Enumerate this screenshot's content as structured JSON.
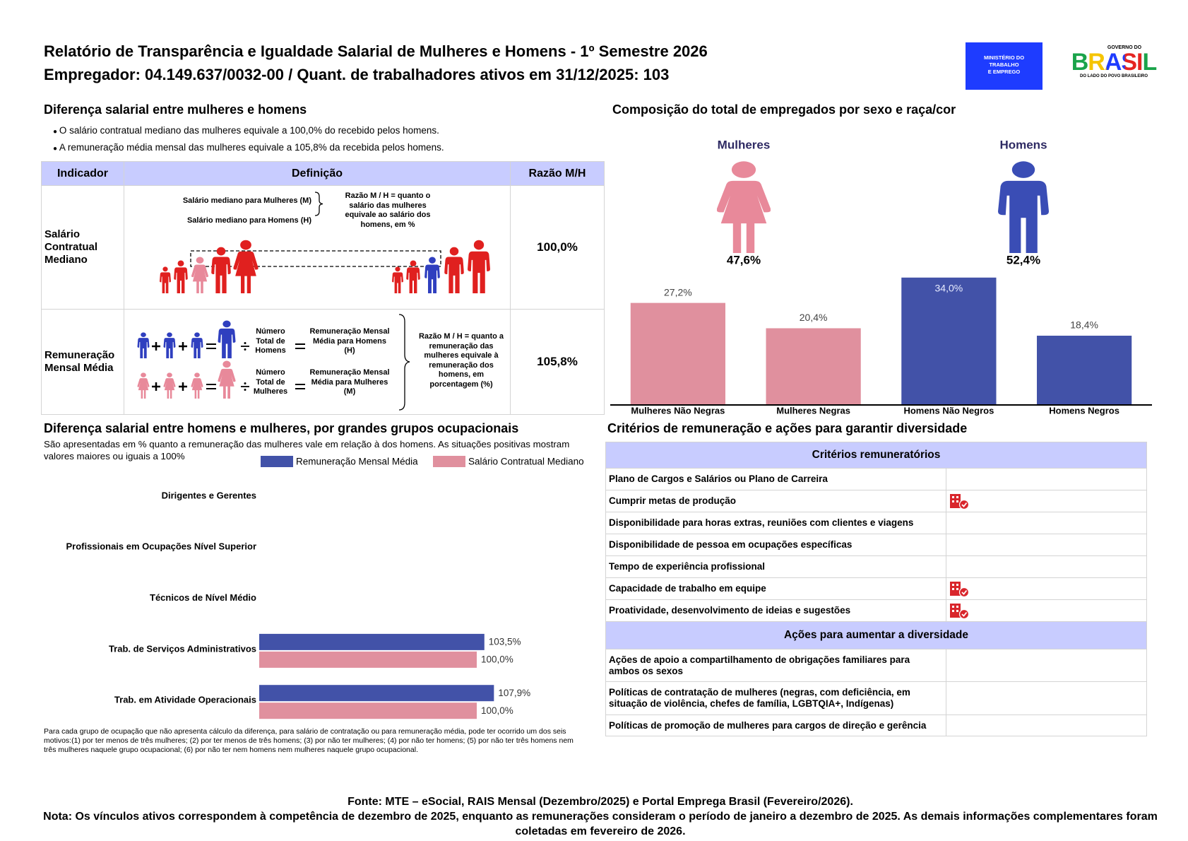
{
  "header": {
    "title": "Relatório de Transparência e Igualdade Salarial de Mulheres e Homens - 1º Semestre 2026",
    "subtitle": "Empregador: 04.149.637/0032-00 / Quant. de trabalhadores ativos em 31/12/2025: 103",
    "ministry_logo": [
      "MINISTÉRIO DO",
      "TRABALHO",
      "E EMPREGO"
    ],
    "government_logo": {
      "top": "GOVERNO DO",
      "name": "BRASIL",
      "slogan": "DO LADO DO POVO BRASILEIRO"
    }
  },
  "salary_gap": {
    "title": "Diferença salarial entre mulheres e homens",
    "bullets": [
      "O salário contratual mediano das mulheres equivale a 100,0% do recebido pelos homens.",
      "A remuneração média mensal das mulheres equivale a 105,8% da recebida pelos homens."
    ],
    "table": {
      "headers": [
        "Indicador",
        "Definição",
        "Razão M/H"
      ],
      "rows": [
        {
          "indicator": "Salário Contratual Mediano",
          "definition": {
            "women_median": "Salário mediano para Mulheres (M)",
            "men_median": "Salário mediano para Homens (H)",
            "ratio_note": "Razão M / H = quanto o salário das mulheres equivale ao salário dos homens, em %"
          },
          "ratio": "100,0%"
        },
        {
          "indicator": "Remuneração Mensal Média",
          "definition": {
            "men_count": "Número Total de Homens",
            "men_mean": "Remuneração Mensal Média para Homens (H)",
            "women_count": "Número Total de Mulheres",
            "women_mean": "Remuneração Mensal Média para Mulheres (M)",
            "ratio_note": "Razão M / H = quanto a remuneração das mulheres equivale à remuneração dos homens, em porcentagem (%)"
          },
          "ratio": "105,8%"
        }
      ]
    }
  },
  "chart_data": [
    {
      "type": "bar",
      "title": "Composição do total de empregados por sexo e raça/cor",
      "groups": [
        {
          "name": "Mulheres",
          "share": "47,6%",
          "color": "#e8899a"
        },
        {
          "name": "Homens",
          "share": "52,4%",
          "color": "#3a4db5"
        }
      ],
      "categories": [
        "Mulheres Não Negras",
        "Mulheres Negras",
        "Homens Não Negros",
        "Homens Negros"
      ],
      "values": [
        27.2,
        20.4,
        34.0,
        18.4
      ],
      "value_labels": [
        "27,2%",
        "20,4%",
        "34,0%",
        "18,4%"
      ],
      "colors": [
        "#e0909e",
        "#e0909e",
        "#4252a8",
        "#4252a8"
      ],
      "ylim": [
        0,
        35
      ]
    },
    {
      "type": "hbar",
      "title": "Diferença salarial entre homens e mulheres, por grandes grupos ocupacionais",
      "subtitle": "São apresentadas em % quanto a remuneração das mulheres vale em relação à dos homens. As situações positivas mostram valores maiores ou iguais a 100%",
      "categories": [
        "Dirigentes e Gerentes",
        "Profissionais em Ocupações Nível Superior",
        "Técnicos de Nível Médio",
        "Trab. de Serviços Administrativos",
        "Trab. em Atividade Operacionais"
      ],
      "series": [
        {
          "name": "Remuneração Mensal Média",
          "color": "#4252a8",
          "values": [
            null,
            null,
            null,
            103.5,
            107.9
          ],
          "value_labels": [
            null,
            null,
            null,
            "103,5%",
            "107,9%"
          ]
        },
        {
          "name": "Salário Contratual Mediano",
          "color": "#e0909e",
          "values": [
            null,
            null,
            null,
            100.0,
            100.0
          ],
          "value_labels": [
            null,
            null,
            null,
            "100,0%",
            "100,0%"
          ]
        }
      ],
      "xlim": [
        0,
        150
      ],
      "note": "Para cada grupo de ocupação que não apresenta cálculo da diferença, para salário de contratação ou para remuneração média, pode ter ocorrido um dos seis motivos:(1) por ter menos de três mulheres; (2) por ter menos de três homens; (3) por não ter mulheres; (4) por não ter homens; (5) por não ter três homens nem três mulheres naquele grupo ocupacional; (6) por não ter nem homens nem mulheres naquele grupo ocupacional."
    }
  ],
  "criteria": {
    "title": "Critérios de remuneração e ações para garantir diversidade",
    "criteria_header": "Critérios remuneratórios",
    "criteria": [
      {
        "label": "Plano de Cargos e Salários ou Plano de Carreira",
        "icon": false
      },
      {
        "label": "Cumprir metas de produção",
        "icon": true
      },
      {
        "label": "Disponibilidade para horas extras, reuniões com clientes e viagens",
        "icon": false
      },
      {
        "label": "Disponibilidade de pessoa em ocupações específicas",
        "icon": false
      },
      {
        "label": "Tempo de experiência profissional",
        "icon": false
      },
      {
        "label": "Capacidade de trabalho em equipe",
        "icon": true
      },
      {
        "label": "Proatividade, desenvolvimento de ideias e sugestões",
        "icon": true
      }
    ],
    "actions_header": "Ações para aumentar a diversidade",
    "actions": [
      {
        "label": "Ações de apoio a compartilhamento de obrigações familiares para ambos os sexos",
        "icon": false
      },
      {
        "label": "Políticas de contratação de mulheres (negras, com deficiência, em situação de violência, chefes de família, LGBTQIA+, Indígenas)",
        "icon": false
      },
      {
        "label": "Políticas de promoção de mulheres para cargos de direção e gerência",
        "icon": false
      }
    ]
  },
  "footer": {
    "source": "Fonte: MTE – eSocial, RAIS Mensal (Dezembro/2025) e Portal Emprega Brasil (Fevereiro/2026).",
    "note": "Nota: Os vínculos ativos correspondem à competência de dezembro de 2025, enquanto as remunerações consideram o período de janeiro a dezembro de 2025. As demais informações complementares foram coletadas em fevereiro de 2026."
  }
}
